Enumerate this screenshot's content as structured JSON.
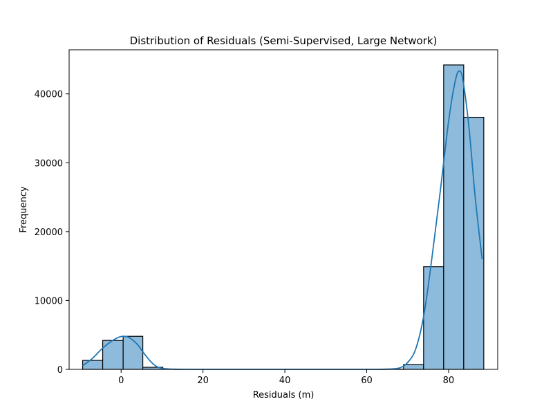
{
  "chart_data": {
    "type": "bar",
    "title": "Distribution of Residuals (Semi-Supervised, Large Network)",
    "xlabel": "Residuals (m)",
    "ylabel": "Frequency",
    "xlim": [
      -12.7,
      92.0
    ],
    "ylim": [
      0,
      46400
    ],
    "xticks": [
      0,
      20,
      40,
      60,
      80
    ],
    "yticks": [
      0,
      10000,
      20000,
      30000,
      40000
    ],
    "grid": false,
    "legend": "none",
    "bins": [
      {
        "x0": -9.4,
        "x1": -4.5,
        "count": 1300
      },
      {
        "x0": -4.5,
        "x1": 0.5,
        "count": 4200
      },
      {
        "x0": 0.5,
        "x1": 5.3,
        "count": 4800
      },
      {
        "x0": 5.3,
        "x1": 10.2,
        "count": 300
      },
      {
        "x0": 10.2,
        "x1": 15.1,
        "count": 20
      },
      {
        "x0": 15.1,
        "x1": 20.0,
        "count": 0
      },
      {
        "x0": 20.0,
        "x1": 24.9,
        "count": 0
      },
      {
        "x0": 24.9,
        "x1": 29.8,
        "count": 0
      },
      {
        "x0": 29.8,
        "x1": 34.7,
        "count": 0
      },
      {
        "x0": 34.7,
        "x1": 39.6,
        "count": 0
      },
      {
        "x0": 39.6,
        "x1": 44.5,
        "count": 0
      },
      {
        "x0": 44.5,
        "x1": 49.4,
        "count": 0
      },
      {
        "x0": 49.4,
        "x1": 54.3,
        "count": 0
      },
      {
        "x0": 54.3,
        "x1": 59.2,
        "count": 0
      },
      {
        "x0": 59.2,
        "x1": 64.1,
        "count": 0
      },
      {
        "x0": 64.1,
        "x1": 69.0,
        "count": 30
      },
      {
        "x0": 69.0,
        "x1": 73.9,
        "count": 700
      },
      {
        "x0": 73.9,
        "x1": 78.8,
        "count": 14900
      },
      {
        "x0": 78.8,
        "x1": 83.7,
        "count": 44200
      },
      {
        "x0": 83.7,
        "x1": 88.6,
        "count": 36600
      }
    ],
    "kde": {
      "x": [
        -9.4,
        -7,
        -5,
        -3,
        -1,
        0.5,
        2,
        4,
        6,
        8,
        10,
        14,
        20,
        30,
        40,
        50,
        60,
        65,
        68,
        70,
        72,
        74,
        76,
        78,
        80,
        81.5,
        82.5,
        83.5,
        85,
        86.5,
        88.2
      ],
      "y": [
        500,
        1600,
        2800,
        3800,
        4550,
        4800,
        4600,
        3600,
        2000,
        700,
        150,
        10,
        0,
        0,
        0,
        0,
        0,
        30,
        200,
        1000,
        3000,
        8000,
        16500,
        26000,
        36000,
        41500,
        43300,
        42000,
        35000,
        25000,
        16000
      ]
    },
    "colors": {
      "bar_fill": "#8ebbdb",
      "bar_edge": "#000000",
      "kde_line": "#1f77b4"
    }
  }
}
